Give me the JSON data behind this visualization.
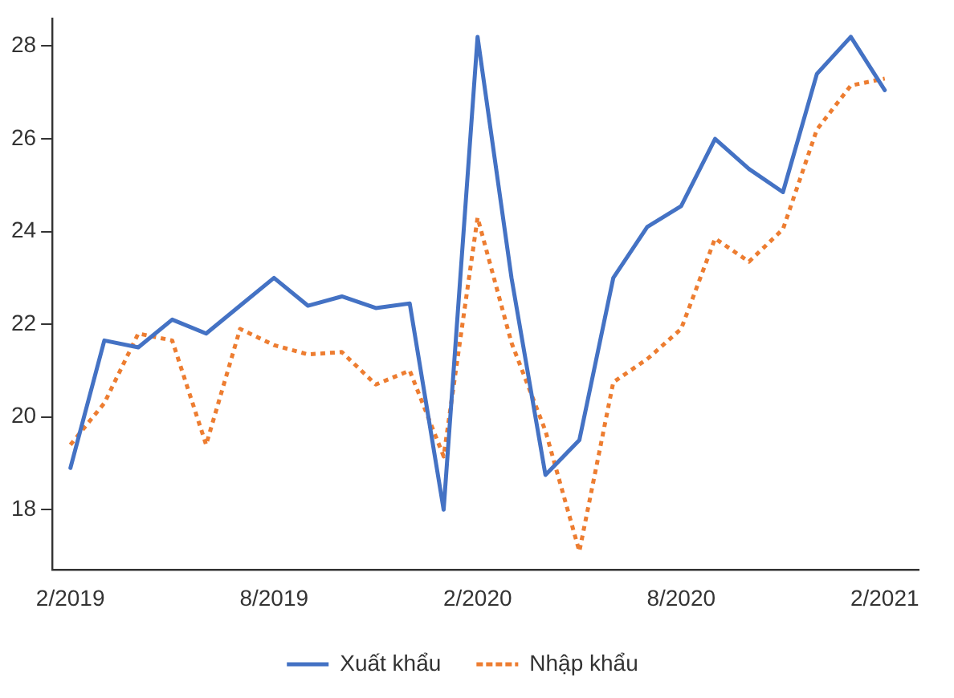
{
  "chart_data": {
    "type": "line",
    "x": [
      "2019-02",
      "2019-03",
      "2019-04",
      "2019-05",
      "2019-06",
      "2019-07",
      "2019-08",
      "2019-09",
      "2019-10",
      "2019-11",
      "2019-12",
      "2020-01",
      "2020-02",
      "2020-03",
      "2020-04",
      "2020-05",
      "2020-06",
      "2020-07",
      "2020-08",
      "2020-09",
      "2020-10",
      "2020-11",
      "2020-12",
      "2021-01",
      "2021-02"
    ],
    "series": [
      {
        "name": "Xuất khẩu",
        "color": "#4472c4",
        "line_style": "solid",
        "values": [
          18.9,
          21.65,
          21.5,
          22.1,
          21.8,
          22.4,
          23.0,
          22.4,
          22.6,
          22.35,
          22.45,
          18.0,
          28.2,
          23.0,
          18.75,
          19.5,
          23.0,
          24.1,
          24.55,
          26.0,
          25.35,
          24.85,
          27.4,
          28.2,
          27.05
        ]
      },
      {
        "name": "Nhập khẩu",
        "color": "#ed7d31",
        "line_style": "dotted",
        "values": [
          19.4,
          20.3,
          21.8,
          21.65,
          19.4,
          21.9,
          21.55,
          21.35,
          21.4,
          20.7,
          21.0,
          19.15,
          24.3,
          21.6,
          19.7,
          17.1,
          20.75,
          21.25,
          21.9,
          23.85,
          23.35,
          24.05,
          26.2,
          27.15,
          27.3
        ]
      }
    ],
    "xlim": [
      "2019-01-15",
      "2021-03-01"
    ],
    "xticks": [
      {
        "value": "2019-02",
        "label": "2/2019"
      },
      {
        "value": "2019-08",
        "label": "8/2019"
      },
      {
        "value": "2020-02",
        "label": "2/2020"
      },
      {
        "value": "2020-08",
        "label": "8/2020"
      },
      {
        "value": "2021-02",
        "label": "2/2021"
      }
    ],
    "ylim": [
      16.7,
      28.6
    ],
    "yticks": [
      18,
      20,
      22,
      24,
      26,
      28
    ],
    "grid": false,
    "legend": "bottom",
    "marker": "none"
  }
}
